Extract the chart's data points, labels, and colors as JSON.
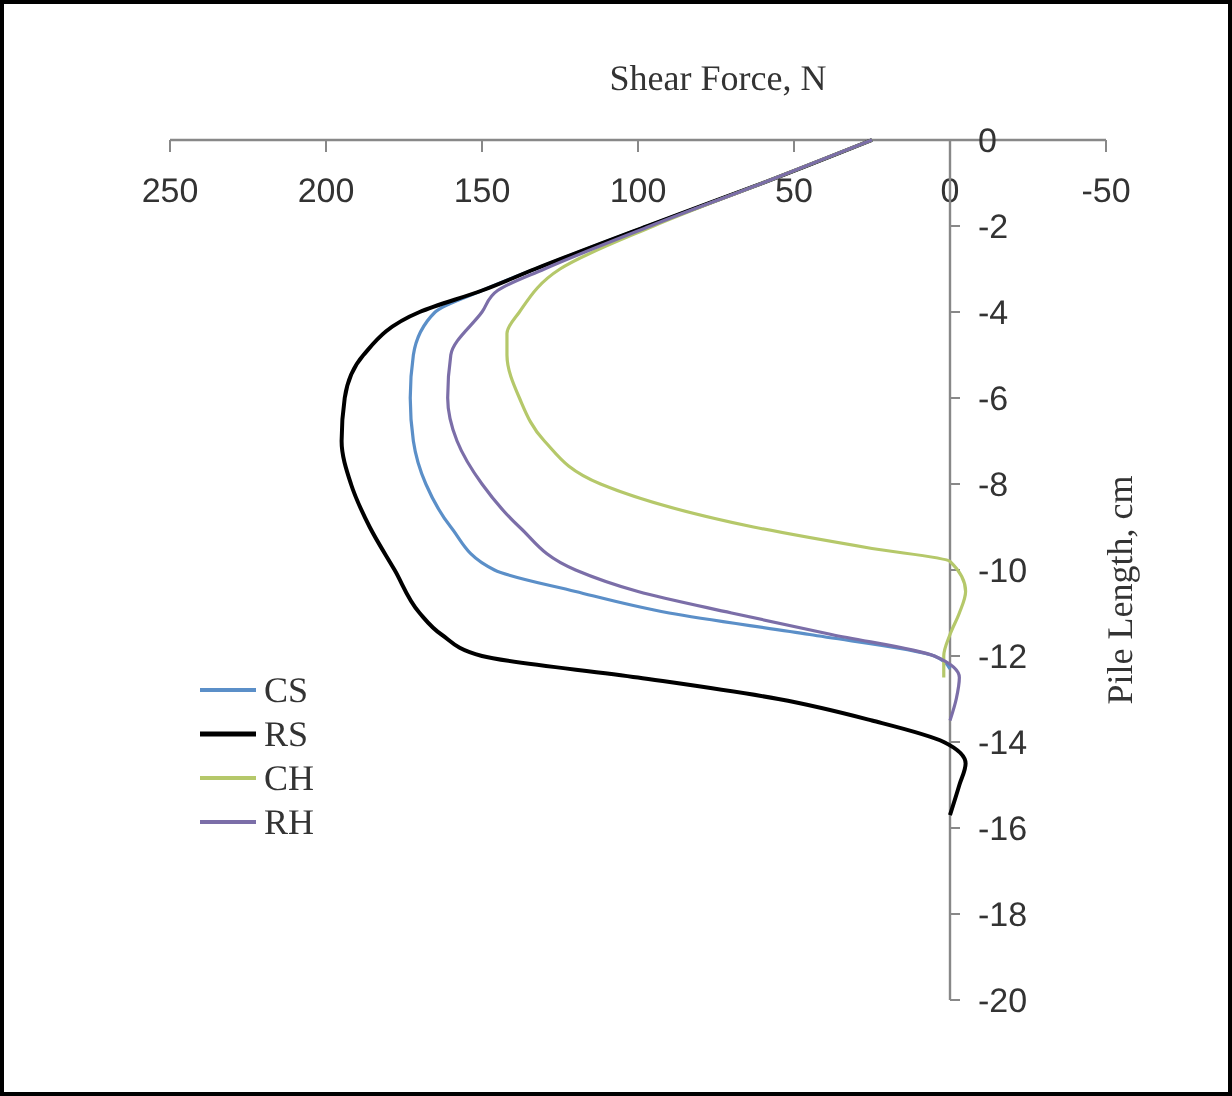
{
  "chart_data": {
    "type": "line",
    "xlabel": "Shear Force, N",
    "ylabel": "Pile Length, cm",
    "xlim": [
      250,
      -50
    ],
    "xticks": [
      250,
      200,
      150,
      100,
      50,
      0,
      -50
    ],
    "ylim": [
      -20,
      0
    ],
    "yticks": [
      -20,
      -18,
      -16,
      -14,
      -12,
      -10,
      -8,
      -6,
      -4,
      -2,
      0
    ],
    "grid": false,
    "legend": "bottom left",
    "marker": "none",
    "line_style": "solid",
    "series": [
      {
        "name": "CS",
        "color": "#5b8fc8",
        "x": [
          25,
          60,
          97,
          133,
          150,
          165,
          172,
          173,
          172,
          168,
          160,
          146,
          120,
          90,
          45,
          5,
          0
        ],
        "values": [
          0,
          -1,
          -2,
          -3,
          -3.5,
          -4,
          -5,
          -6,
          -7,
          -8,
          -9,
          -10,
          -10.5,
          -11,
          -11.5,
          -12,
          -12.3
        ]
      },
      {
        "name": "RS",
        "color": "#000000",
        "x": [
          25,
          60,
          97,
          133,
          150,
          170,
          188,
          194,
          195,
          192,
          186,
          178,
          170,
          163,
          150,
          100,
          55,
          25,
          2,
          -5,
          -3,
          0
        ],
        "values": [
          0,
          -1,
          -2,
          -3,
          -3.5,
          -4,
          -5,
          -6,
          -7,
          -8,
          -9,
          -10,
          -11,
          -11.5,
          -12,
          -12.5,
          -13,
          -13.5,
          -14,
          -14.5,
          -15,
          -15.7
        ]
      },
      {
        "name": "CH",
        "color": "#b5c86a",
        "x": [
          25,
          60,
          95,
          125,
          138,
          142,
          142,
          138,
          130,
          112,
          63,
          25,
          0,
          -5,
          -3,
          0,
          2,
          2
        ],
        "values": [
          0,
          -1,
          -2,
          -3,
          -4,
          -4.5,
          -5,
          -6,
          -7,
          -8,
          -9,
          -9.5,
          -9.8,
          -10.5,
          -11,
          -11.5,
          -12,
          -12.5
        ]
      },
      {
        "name": "RH",
        "color": "#7b6ea8",
        "x": [
          25,
          60,
          96,
          130,
          145,
          150,
          160,
          161,
          158,
          150,
          138,
          120,
          100,
          70,
          38,
          5,
          -3,
          -2,
          0
        ],
        "values": [
          0,
          -1,
          -2,
          -3,
          -3.5,
          -4,
          -5,
          -6,
          -7,
          -8,
          -9,
          -10,
          -10.5,
          -11,
          -11.5,
          -12,
          -12.5,
          -13,
          -13.5
        ]
      }
    ]
  }
}
